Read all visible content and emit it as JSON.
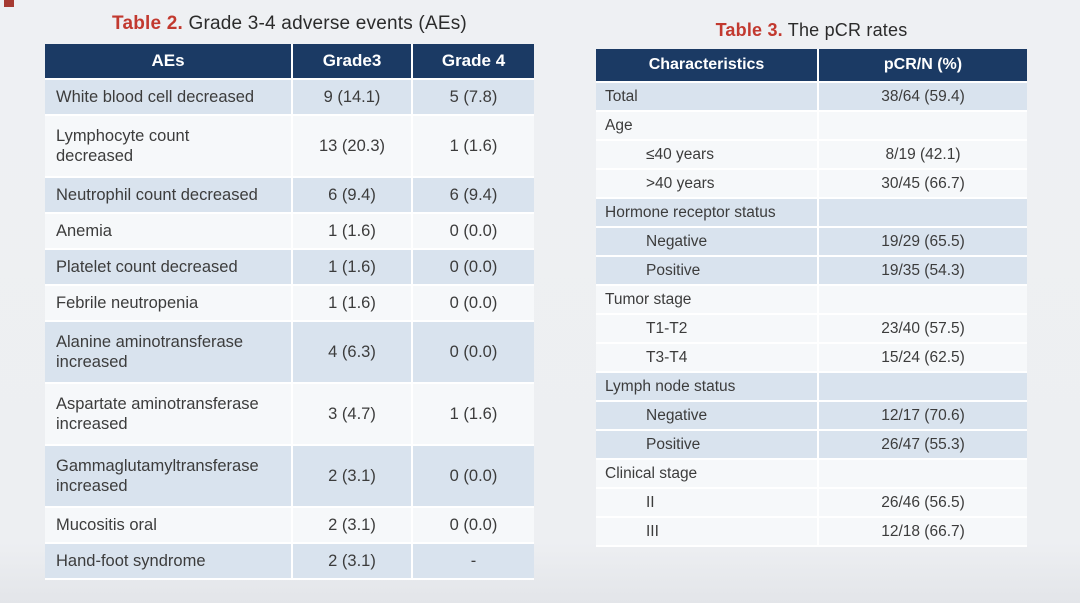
{
  "colors": {
    "accent_red": "#c2392f",
    "header_navy": "#1b3a64",
    "row_blue": "#d9e3ee",
    "row_light": "#f6f8fa",
    "background": "#eef0f3",
    "corner_mark": "#a63a32"
  },
  "table2": {
    "title_prefix": "Table 2.",
    "title_rest": " Grade 3-4 adverse events (AEs)",
    "columns": [
      "AEs",
      "Grade3",
      "Grade 4"
    ],
    "rows": [
      {
        "cells": [
          "White blood cell decreased",
          "9 (14.1)",
          "5 (7.8)"
        ],
        "shade": "blue"
      },
      {
        "cells": [
          "Lymphocyte count\ndecreased",
          "13 (20.3)",
          "1 (1.6)"
        ],
        "shade": "light"
      },
      {
        "cells": [
          "Neutrophil count decreased",
          "6 (9.4)",
          "6 (9.4)"
        ],
        "shade": "blue"
      },
      {
        "cells": [
          "Anemia",
          "1 (1.6)",
          "0 (0.0)"
        ],
        "shade": "light"
      },
      {
        "cells": [
          "Platelet count decreased",
          "1 (1.6)",
          "0 (0.0)"
        ],
        "shade": "blue"
      },
      {
        "cells": [
          "Febrile neutropenia",
          "1 (1.6)",
          "0 (0.0)"
        ],
        "shade": "light"
      },
      {
        "cells": [
          "Alanine aminotransferase\nincreased",
          "4 (6.3)",
          "0 (0.0)"
        ],
        "shade": "blue"
      },
      {
        "cells": [
          "Aspartate aminotransferase\nincreased",
          "3 (4.7)",
          "1 (1.6)"
        ],
        "shade": "light"
      },
      {
        "cells": [
          "Gammaglutamyltransferase\nincreased",
          "2 (3.1)",
          "0 (0.0)"
        ],
        "shade": "blue"
      },
      {
        "cells": [
          "Mucositis oral",
          "2 (3.1)",
          "0 (0.0)"
        ],
        "shade": "light"
      },
      {
        "cells": [
          "Hand-foot syndrome",
          "2 (3.1)",
          "-"
        ],
        "shade": "blue"
      }
    ]
  },
  "table3": {
    "title_prefix": "Table 3.",
    "title_rest": " The pCR rates",
    "columns": [
      "Characteristics",
      "pCR/N (%)"
    ],
    "rows": [
      {
        "label": "Total",
        "value": "38/64 (59.4)",
        "indent": false,
        "shade": "blue"
      },
      {
        "label": "Age",
        "value": "",
        "indent": false,
        "shade": "light"
      },
      {
        "label": "≤40 years",
        "value": "8/19 (42.1)",
        "indent": true,
        "shade": "light"
      },
      {
        "label": ">40 years",
        "value": "30/45 (66.7)",
        "indent": true,
        "shade": "light"
      },
      {
        "label": "Hormone receptor status",
        "value": "",
        "indent": false,
        "shade": "blue"
      },
      {
        "label": "Negative",
        "value": "19/29 (65.5)",
        "indent": true,
        "shade": "blue"
      },
      {
        "label": "Positive",
        "value": "19/35 (54.3)",
        "indent": true,
        "shade": "blue"
      },
      {
        "label": "Tumor stage",
        "value": "",
        "indent": false,
        "shade": "light"
      },
      {
        "label": "T1-T2",
        "value": "23/40 (57.5)",
        "indent": true,
        "shade": "light"
      },
      {
        "label": "T3-T4",
        "value": "15/24 (62.5)",
        "indent": true,
        "shade": "light"
      },
      {
        "label": "Lymph node status",
        "value": "",
        "indent": false,
        "shade": "blue"
      },
      {
        "label": "Negative",
        "value": "12/17 (70.6)",
        "indent": true,
        "shade": "blue"
      },
      {
        "label": "Positive",
        "value": "26/47 (55.3)",
        "indent": true,
        "shade": "blue"
      },
      {
        "label": "Clinical stage",
        "value": "",
        "indent": false,
        "shade": "light"
      },
      {
        "label": "II",
        "value": "26/46 (56.5)",
        "indent": true,
        "shade": "light"
      },
      {
        "label": "III",
        "value": "12/18 (66.7)",
        "indent": true,
        "shade": "light"
      }
    ]
  }
}
